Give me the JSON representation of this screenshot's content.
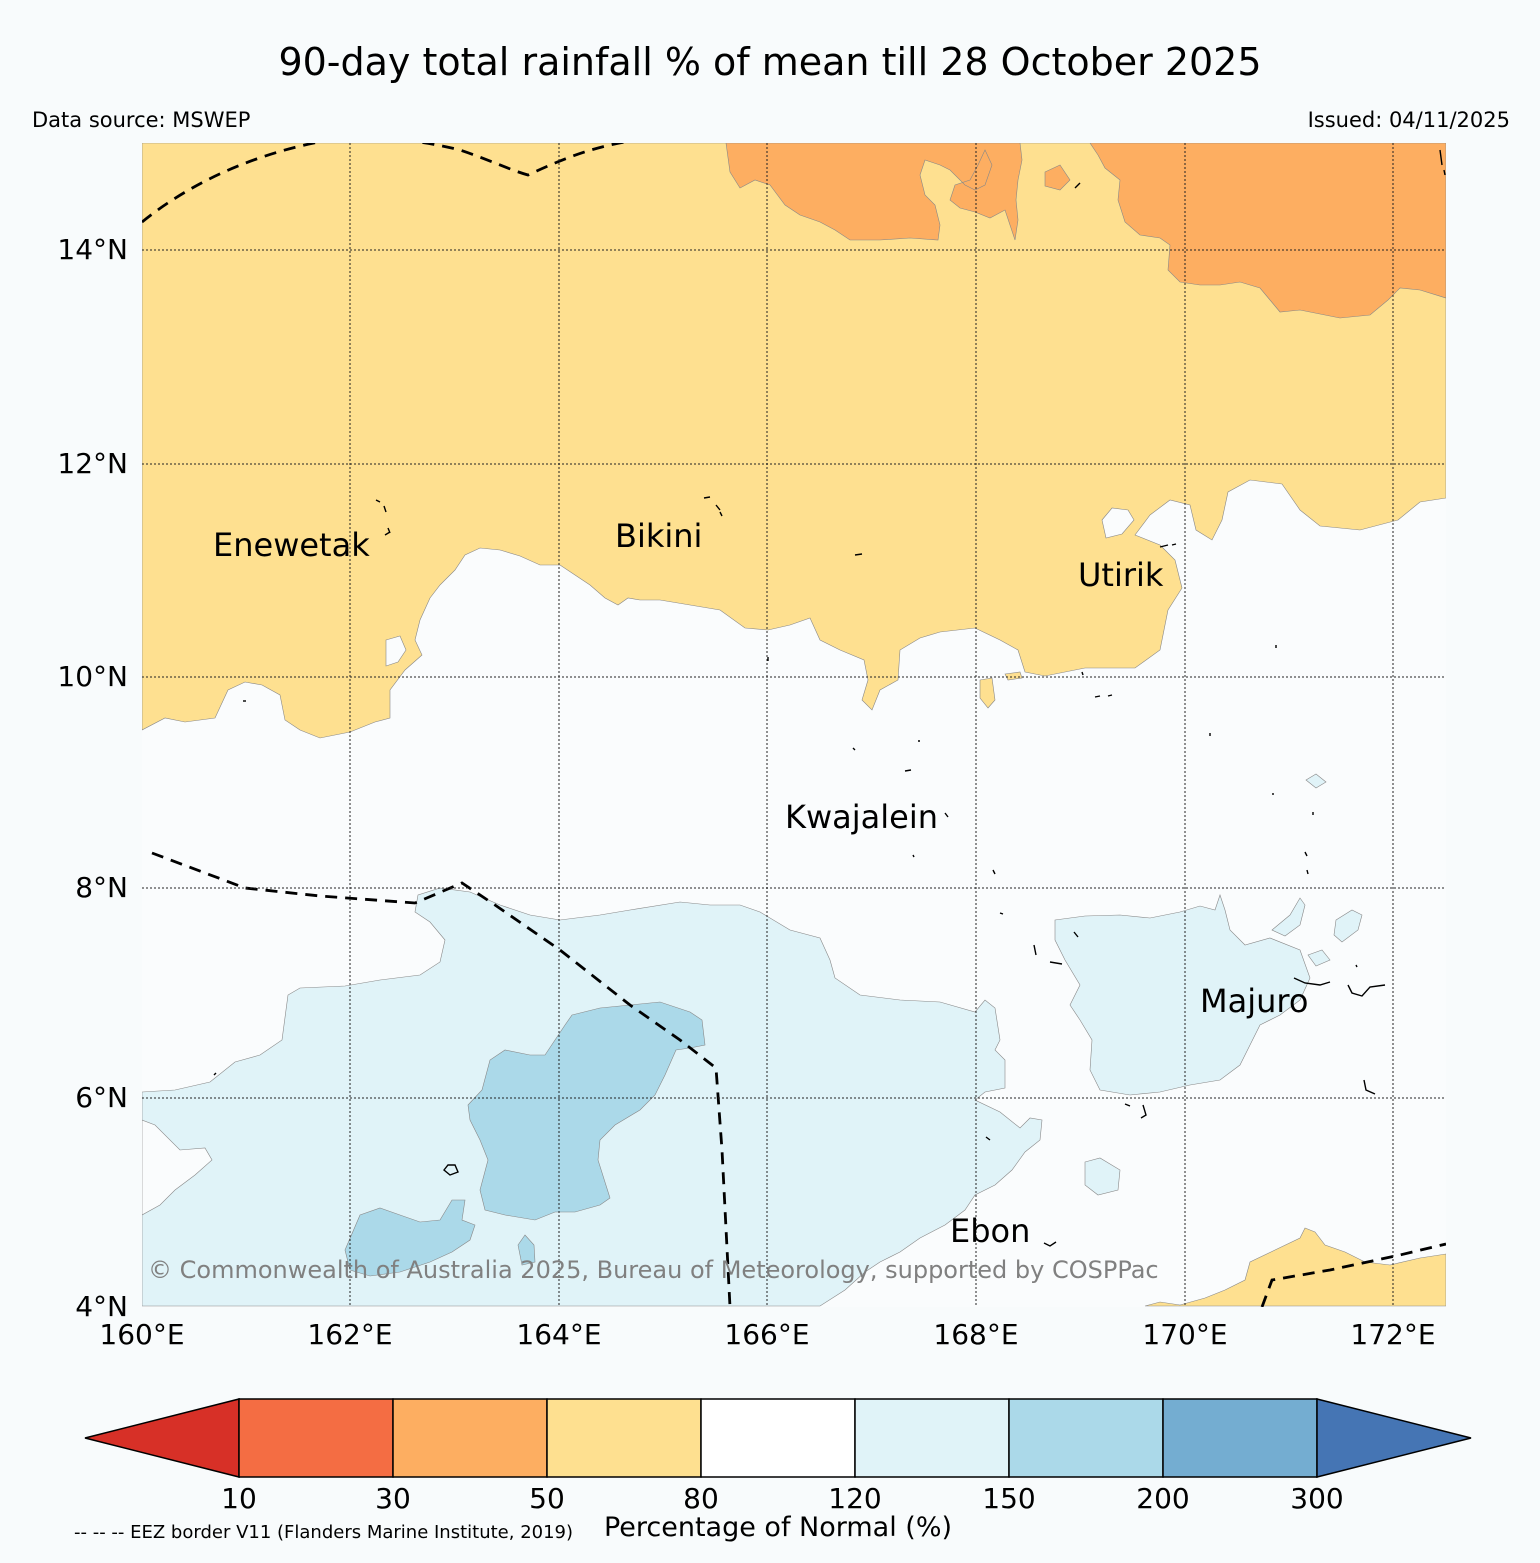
{
  "title": "90-day total rainfall % of mean till 28 October 2025",
  "data_source": "Data source: MSWEP",
  "issued": "Issued: 04/11/2025",
  "copyright": "© Commonwealth of Australia 2025, Bureau of Meteorology, supported by COSPPac",
  "eez_note": "-- -- -- EEZ border V11 (Flanders Marine Institute, 2019)",
  "colorbar": {
    "label": "Percentage of Normal (%)",
    "ticks": [
      "10",
      "30",
      "50",
      "80",
      "120",
      "150",
      "200",
      "300"
    ],
    "colors": {
      "below_10": "#d73027",
      "10_30": "#f46d43",
      "30_50": "#fdae61",
      "50_80": "#fee090",
      "80_120": "#ffffff",
      "120_150": "#e0f3f8",
      "150_200": "#abd9e9",
      "200_300": "#74add1",
      "above_300": "#4575b4"
    }
  },
  "map": {
    "lon_labels": [
      "160°E",
      "162°E",
      "164°E",
      "166°E",
      "168°E",
      "170°E",
      "172°E"
    ],
    "lat_labels": [
      "14°N",
      "12°N",
      "10°N",
      "8°N",
      "6°N",
      "4°N"
    ],
    "places": [
      "Enewetak",
      "Bikini",
      "Utirik",
      "Kwajalein",
      "Majuro",
      "Ebon"
    ]
  }
}
